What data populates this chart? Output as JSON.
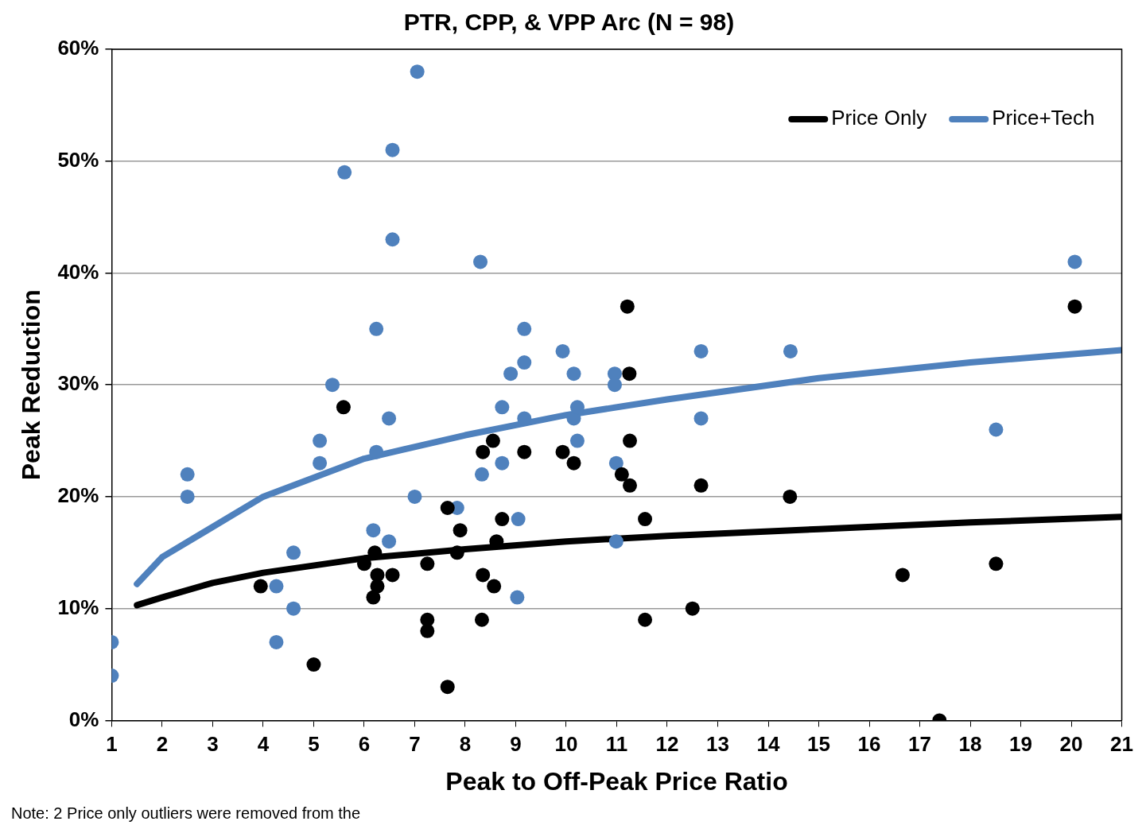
{
  "chart_data": {
    "type": "scatter",
    "title": "PTR, CPP, & VPP Arc (N = 98)",
    "xlabel": "Peak to Off-Peak Price Ratio",
    "ylabel": "Peak Reduction",
    "annotations": [
      "Note: 2 Price only outliers were removed from the"
    ],
    "xlim": [
      1,
      21
    ],
    "xticks": [
      1,
      2,
      3,
      4,
      5,
      6,
      7,
      8,
      9,
      10,
      11,
      12,
      13,
      14,
      15,
      16,
      17,
      18,
      19,
      20,
      21
    ],
    "ylim": [
      0,
      60
    ],
    "yticks": [
      {
        "value": 0,
        "label": "0%"
      },
      {
        "value": 10,
        "label": "10%"
      },
      {
        "value": 20,
        "label": "20%"
      },
      {
        "value": 30,
        "label": "30%"
      },
      {
        "value": 40,
        "label": "40%"
      },
      {
        "value": 50,
        "label": "50%"
      },
      {
        "value": 60,
        "label": "60%"
      }
    ],
    "grid": "y",
    "legend": "top right",
    "marker": "circle",
    "series": [
      {
        "color": "#000000",
        "x": [
          3.95,
          5.59,
          5.0,
          6.0,
          6.21,
          6.26,
          6.26,
          6.18,
          6.56,
          7.25,
          7.25,
          7.25,
          7.65,
          7.65,
          7.9,
          7.84,
          8.35,
          8.55,
          8.35,
          8.57,
          8.33,
          8.62,
          8.73,
          9.17,
          9.93,
          10.15,
          11.1,
          11.21,
          11.25,
          11.26,
          11.26,
          11.56,
          11.56,
          12.5,
          12.67,
          14.43,
          16.66,
          17.39,
          18.51,
          20.07
        ],
        "values": [
          12,
          28,
          5,
          14,
          15,
          13,
          12,
          11,
          13,
          14,
          9,
          8,
          3,
          19,
          17,
          15,
          24,
          25,
          13,
          12,
          9,
          16,
          18,
          24,
          24,
          23,
          22,
          37,
          31,
          25,
          21,
          18,
          9,
          10,
          21,
          20,
          13,
          0,
          14,
          37
        ]
      },
      {
        "color": "#4f81bd",
        "x": [
          1.0,
          1.0,
          2.5,
          2.5,
          4.26,
          4.26,
          4.6,
          4.6,
          5.12,
          5.12,
          5.37,
          5.61,
          6.18,
          6.24,
          6.24,
          6.49,
          6.49,
          6.56,
          6.56,
          7.0,
          7.05,
          7.84,
          8.3,
          8.33,
          8.73,
          8.73,
          8.9,
          9.05,
          9.03,
          9.17,
          9.17,
          9.17,
          9.93,
          10.15,
          10.15,
          10.22,
          10.22,
          10.96,
          10.96,
          10.99,
          10.99,
          12.67,
          12.67,
          14.44,
          18.51,
          20.07
        ],
        "values": [
          7,
          4,
          22,
          20,
          12,
          7,
          15,
          10,
          25,
          23,
          30,
          49,
          17,
          35,
          24,
          16,
          27,
          51,
          43,
          20,
          58,
          19,
          41,
          22,
          28,
          23,
          31,
          18,
          11,
          35,
          32,
          27,
          33,
          31,
          27,
          28,
          25,
          31,
          30,
          23,
          16,
          33,
          27,
          33,
          26,
          41
        ]
      },
      {
        "type": "line",
        "name": "Price Only",
        "color": "#000000",
        "marker": "none",
        "x": [
          1.5,
          2,
          3,
          4,
          6,
          8,
          10,
          12,
          15,
          18,
          21
        ],
        "values": [
          10.3,
          11,
          12.3,
          13.2,
          14.5,
          15.3,
          16,
          16.5,
          17.1,
          17.7,
          18.2
        ]
      },
      {
        "type": "line",
        "name": "Price+Tech",
        "color": "#4f81bd",
        "marker": "none",
        "x": [
          1.5,
          2,
          4,
          6,
          8,
          10,
          12,
          15,
          18,
          21
        ],
        "values": [
          12.2,
          14.6,
          20,
          23.4,
          25.5,
          27.3,
          28.7,
          30.6,
          32.0,
          33.1
        ]
      }
    ]
  }
}
